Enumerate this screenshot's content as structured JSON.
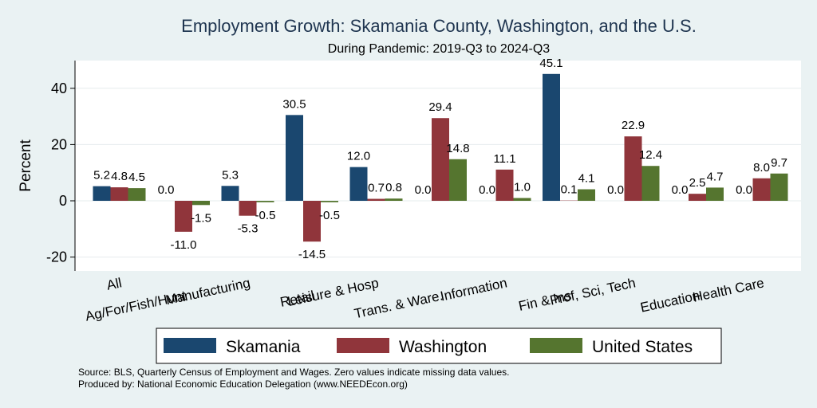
{
  "chart_data": {
    "type": "bar",
    "title": "Employment Growth: Skamania County, Washington, and the U.S.",
    "subtitle": "During Pandemic: 2019-Q3 to 2024-Q3",
    "ylabel": "Percent",
    "xlabel": "",
    "ylim": [
      -25,
      50
    ],
    "yticks": [
      -20,
      0,
      20,
      40
    ],
    "grid": true,
    "legend_position": "bottom",
    "categories": [
      "All",
      "Ag/For/Fish/Hunt",
      "Manufacturing",
      "Retail",
      "Leisure & Hosp",
      "Trans. & Ware.",
      "Information",
      "Fin & Ins",
      "Prof, Sci, Tech",
      "Education",
      "Health Care"
    ],
    "series": [
      {
        "name": "Skamania",
        "color": "#1a476f",
        "values": [
          5.2,
          0.0,
          5.3,
          30.5,
          12.0,
          0.0,
          0.0,
          45.1,
          0.0,
          0.0,
          0.0
        ]
      },
      {
        "name": "Washington",
        "color": "#90353b",
        "values": [
          4.8,
          -11.0,
          -5.3,
          -14.5,
          0.7,
          29.4,
          11.1,
          0.1,
          22.9,
          2.5,
          8.0
        ]
      },
      {
        "name": "United States",
        "color": "#55752f",
        "values": [
          4.5,
          -1.5,
          -0.5,
          -0.5,
          0.8,
          14.8,
          1.0,
          4.1,
          12.4,
          4.7,
          9.7
        ]
      }
    ]
  },
  "footer": {
    "source": "Source: BLS, Quarterly Census of Employment and Wages. Zero values indicate missing data values.",
    "produced": "Produced by: National Economic Education Delegation (www.NEEDEcon.org)"
  }
}
